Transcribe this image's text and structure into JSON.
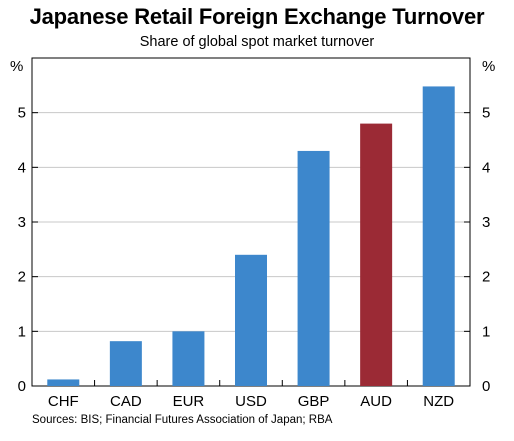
{
  "chart_data": {
    "type": "bar",
    "title": "Japanese Retail Foreign Exchange Turnover",
    "subtitle": "Share of global spot market turnover",
    "unit_left": "%",
    "unit_right": "%",
    "categories": [
      "CHF",
      "CAD",
      "EUR",
      "USD",
      "GBP",
      "AUD",
      "NZD"
    ],
    "values": [
      0.12,
      0.82,
      1.0,
      2.4,
      4.3,
      4.8,
      5.48
    ],
    "highlight": "AUD",
    "bar_color": "#3d87cc",
    "highlight_color": "#9b2a35",
    "ylim": [
      0,
      6
    ],
    "yticks": [
      0,
      1,
      2,
      3,
      4,
      5
    ],
    "grid": true,
    "source": "Sources: BIS; Financial Futures Association of Japan; RBA"
  }
}
